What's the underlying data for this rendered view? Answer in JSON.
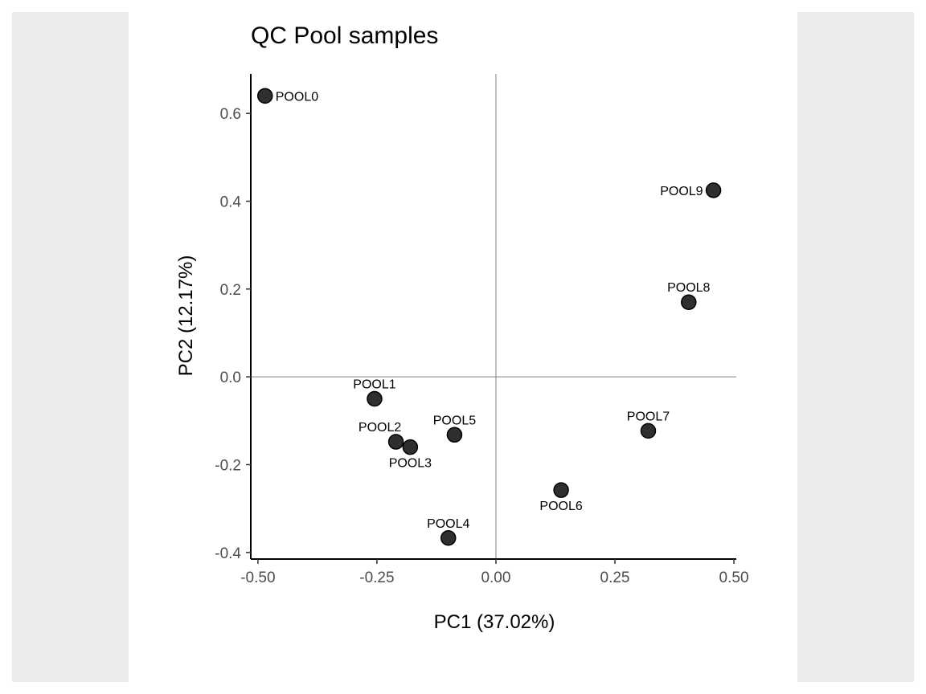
{
  "chart_data": {
    "type": "scatter",
    "title": "QC Pool samples",
    "xlabel": "PC1 (37.02%)",
    "ylabel": "PC2 (12.17%)",
    "xlim": [
      -0.515,
      0.505
    ],
    "ylim": [
      -0.415,
      0.69
    ],
    "x_ticks": [
      {
        "value": -0.5,
        "label": "-0.50"
      },
      {
        "value": -0.25,
        "label": "-0.25"
      },
      {
        "value": 0.0,
        "label": "0.00"
      },
      {
        "value": 0.25,
        "label": "0.25"
      },
      {
        "value": 0.5,
        "label": "0.50"
      }
    ],
    "y_ticks": [
      {
        "value": -0.4,
        "label": "-0.4"
      },
      {
        "value": -0.2,
        "label": "-0.2"
      },
      {
        "value": 0.0,
        "label": "0.0"
      },
      {
        "value": 0.2,
        "label": "0.2"
      },
      {
        "value": 0.4,
        "label": "0.4"
      },
      {
        "value": 0.6,
        "label": "0.6"
      }
    ],
    "reference_lines": {
      "x": 0,
      "y": 0
    },
    "grid": false,
    "legend": "none",
    "point_color": "#2b2b2b",
    "points": [
      {
        "label": "POOL0",
        "x": -0.485,
        "y": 0.64,
        "label_position": "right"
      },
      {
        "label": "POOL1",
        "x": -0.255,
        "y": -0.05,
        "label_position": "above"
      },
      {
        "label": "POOL2",
        "x": -0.21,
        "y": -0.148,
        "label_position": "above-left"
      },
      {
        "label": "POOL3",
        "x": -0.18,
        "y": -0.16,
        "label_position": "below"
      },
      {
        "label": "POOL4",
        "x": -0.1,
        "y": -0.367,
        "label_position": "above"
      },
      {
        "label": "POOL5",
        "x": -0.087,
        "y": -0.132,
        "label_position": "above"
      },
      {
        "label": "POOL6",
        "x": 0.137,
        "y": -0.258,
        "label_position": "below"
      },
      {
        "label": "POOL7",
        "x": 0.32,
        "y": -0.123,
        "label_position": "above"
      },
      {
        "label": "POOL8",
        "x": 0.405,
        "y": 0.17,
        "label_position": "above"
      },
      {
        "label": "POOL9",
        "x": 0.457,
        "y": 0.425,
        "label_position": "left"
      }
    ]
  }
}
